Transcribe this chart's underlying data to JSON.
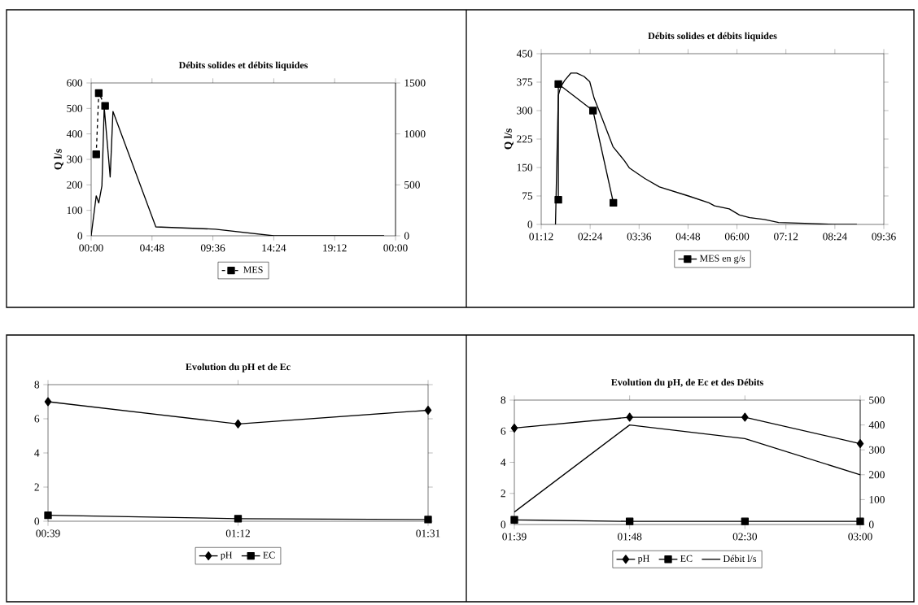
{
  "chart_data": [
    {
      "type": "line",
      "title": "Débits solides et débits liquides",
      "ylabel": "Q l/s",
      "xlim": [
        0,
        24
      ],
      "xticks": [
        {
          "value": 0,
          "label": "00:00"
        },
        {
          "value": 4.8,
          "label": "04:48"
        },
        {
          "value": 9.6,
          "label": "09:36"
        },
        {
          "value": 14.4,
          "label": "14:24"
        },
        {
          "value": 19.2,
          "label": "19:12"
        },
        {
          "value": 24,
          "label": "00:00"
        }
      ],
      "ylim": [
        0,
        600
      ],
      "yticks": [
        0,
        100,
        200,
        300,
        400,
        500,
        600
      ],
      "y2lim": [
        0,
        1500
      ],
      "y2ticks": [
        0,
        500,
        1000,
        1500
      ],
      "legend": "bottom",
      "series": [
        {
          "color": "#000000",
          "marker": "none",
          "line_style": "solid",
          "x": [
            0,
            0.4,
            0.6,
            0.85,
            1.03,
            1.5,
            1.72,
            5.1,
            9.8,
            14.4,
            23.1
          ],
          "values": [
            0,
            157,
            129,
            197,
            505,
            231,
            488,
            35,
            26,
            0,
            0
          ]
        },
        {
          "name": "MES",
          "color": "#000000",
          "marker": "square",
          "line_style": "dashed",
          "axis": "y2",
          "x": [
            0.4,
            0.6,
            1.1
          ],
          "values": [
            800,
            1400,
            1275
          ]
        }
      ]
    },
    {
      "type": "line",
      "title": "Débits solides et débits liquides",
      "ylabel": "Q l/s",
      "xlim": [
        1.2,
        9.6
      ],
      "xticks": [
        {
          "value": 1.2,
          "label": "01:12"
        },
        {
          "value": 2.4,
          "label": "02:24"
        },
        {
          "value": 3.6,
          "label": "03:36"
        },
        {
          "value": 4.8,
          "label": "04:48"
        },
        {
          "value": 6,
          "label": "06:00"
        },
        {
          "value": 7.2,
          "label": "07:12"
        },
        {
          "value": 8.4,
          "label": "08:24"
        },
        {
          "value": 9.6,
          "label": "09:36"
        }
      ],
      "ylim": [
        0,
        450
      ],
      "yticks": [
        0,
        75,
        150,
        225,
        300,
        375,
        450
      ],
      "legend": "bottom",
      "series": [
        {
          "color": "#000000",
          "marker": "none",
          "line_style": "solid",
          "x": [
            1.55,
            1.62,
            1.68,
            1.78,
            1.93,
            2.07,
            2.25,
            2.39,
            2.5,
            2.67,
            2.96,
            3.24,
            3.36,
            3.74,
            4.1,
            4.81,
            5.31,
            5.45,
            5.81,
            6.06,
            6.31,
            6.67,
            7.02,
            7.66,
            8.37,
            8.94
          ],
          "values": [
            0,
            340,
            363,
            380,
            399,
            399,
            390,
            376,
            332,
            286,
            205,
            168,
            149,
            121,
            99,
            75,
            57,
            49,
            41,
            25,
            18,
            13,
            5,
            3,
            0,
            0
          ]
        },
        {
          "name": "MES en g/s",
          "color": "#000000",
          "marker": "square",
          "line_style": "solid",
          "x": [
            1.62,
            1.62,
            2.47,
            2.97
          ],
          "values": [
            65,
            370,
            300,
            57
          ]
        }
      ]
    },
    {
      "type": "line",
      "title": "Evolution du pH et de Ec",
      "categories": [
        "00:39",
        "01:12",
        "01:31"
      ],
      "ylim": [
        0,
        8
      ],
      "yticks": [
        0,
        2,
        4,
        6,
        8
      ],
      "legend": "bottom",
      "series": [
        {
          "name": "pH",
          "color": "#000000",
          "marker": "diamond",
          "line_style": "solid",
          "values": [
            7.0,
            5.7,
            6.5
          ]
        },
        {
          "name": "EC",
          "color": "#000000",
          "marker": "square",
          "line_style": "solid",
          "values": [
            0.35,
            0.15,
            0.1
          ]
        }
      ]
    },
    {
      "type": "line",
      "title": "Evolution du pH, de Ec et des Débits",
      "categories": [
        "01:39",
        "01:48",
        "02:30",
        "03:00"
      ],
      "ylim": [
        0,
        8
      ],
      "yticks": [
        0,
        2,
        4,
        6,
        8
      ],
      "y2lim": [
        0,
        500
      ],
      "y2ticks": [
        0,
        100,
        200,
        300,
        400,
        500
      ],
      "legend": "bottom",
      "series": [
        {
          "name": "pH",
          "color": "#000000",
          "marker": "diamond",
          "line_style": "solid",
          "values": [
            6.2,
            6.9,
            6.9,
            5.2
          ]
        },
        {
          "name": "EC",
          "color": "#000000",
          "marker": "square",
          "line_style": "solid",
          "values": [
            0.3,
            0.2,
            0.2,
            0.2
          ]
        },
        {
          "name": "Débit l/s",
          "color": "#000000",
          "marker": "none",
          "line_style": "solid",
          "axis": "y2",
          "values": [
            50,
            400,
            345,
            200
          ]
        }
      ]
    }
  ]
}
